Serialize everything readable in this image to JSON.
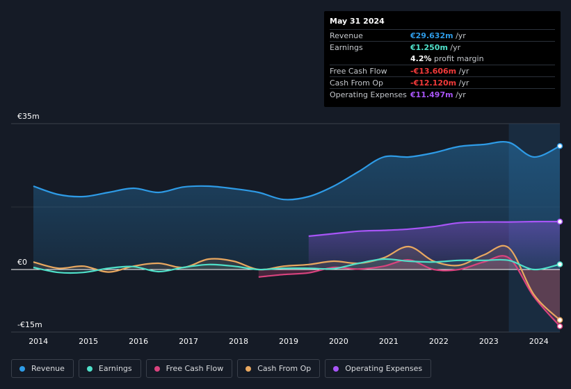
{
  "tooltip": {
    "date": "May 31 2024",
    "rows": [
      {
        "label": "Revenue",
        "value": "€29.632m",
        "unit": " /yr",
        "color": "#2e9be6"
      },
      {
        "label": "Earnings",
        "value": "€1.250m",
        "unit": " /yr",
        "color": "#4fe0c9"
      },
      {
        "label": "",
        "value": "4.2%",
        "unit": " profit margin",
        "color": "#ffffff"
      },
      {
        "label": "Free Cash Flow",
        "value": "-€13.606m",
        "unit": " /yr",
        "color": "#f23a3a"
      },
      {
        "label": "Cash From Op",
        "value": "-€12.120m",
        "unit": " /yr",
        "color": "#f23a3a"
      },
      {
        "label": "Operating Expenses",
        "value": "€11.497m",
        "unit": " /yr",
        "color": "#a855f7"
      }
    ]
  },
  "legend": [
    {
      "label": "Revenue",
      "color": "#2e9be6"
    },
    {
      "label": "Earnings",
      "color": "#4fe0c9"
    },
    {
      "label": "Free Cash Flow",
      "color": "#d9437e"
    },
    {
      "label": "Cash From Op",
      "color": "#e9a860"
    },
    {
      "label": "Operating Expenses",
      "color": "#a855f7"
    }
  ],
  "chart_data": {
    "type": "area",
    "y_tick_labels": [
      "€35m",
      "€0",
      "-€15m"
    ],
    "x_tick_labels": [
      "2014",
      "2015",
      "2016",
      "2017",
      "2018",
      "2019",
      "2020",
      "2021",
      "2022",
      "2023",
      "2024"
    ],
    "ylim": [
      -15,
      35
    ],
    "xlim": [
      2013.9,
      2024.42
    ],
    "grid": true,
    "highlight_start": 2023.4,
    "series": [
      {
        "name": "Revenue",
        "color": "#2e9be6",
        "x": [
          2013.9,
          2014.4,
          2014.9,
          2015.4,
          2015.9,
          2016.4,
          2016.9,
          2017.4,
          2017.9,
          2018.4,
          2018.9,
          2019.4,
          2019.9,
          2020.4,
          2020.9,
          2021.4,
          2021.9,
          2022.4,
          2022.9,
          2023.4,
          2023.9,
          2024.42
        ],
        "y": [
          20,
          18,
          17.5,
          18.5,
          19.5,
          18.5,
          19.8,
          20,
          19.4,
          18.5,
          16.8,
          17.5,
          20,
          23.5,
          27,
          27,
          28,
          29.5,
          30,
          30.5,
          27,
          29.632
        ]
      },
      {
        "name": "Earnings",
        "color": "#4fe0c9",
        "x": [
          2013.9,
          2014.4,
          2014.9,
          2015.4,
          2015.9,
          2016.4,
          2016.9,
          2017.4,
          2017.9,
          2018.4,
          2018.9,
          2019.4,
          2019.9,
          2020.4,
          2020.9,
          2021.4,
          2021.9,
          2022.4,
          2022.9,
          2023.4,
          2023.9,
          2024.42
        ],
        "y": [
          0.5,
          -0.7,
          -0.7,
          0.3,
          0.7,
          -0.5,
          0.5,
          1.2,
          0.8,
          0,
          0.3,
          0.3,
          0.2,
          1.5,
          2.5,
          2,
          1.8,
          2.2,
          2.2,
          2.2,
          0,
          1.25
        ]
      },
      {
        "name": "Free Cash Flow",
        "color": "#d9437e",
        "x": [
          2018.4,
          2018.9,
          2019.4,
          2019.9,
          2020.4,
          2020.9,
          2021.4,
          2021.9,
          2022.4,
          2022.9,
          2023.4,
          2023.9,
          2024.42
        ],
        "y": [
          -1.8,
          -1.2,
          -0.8,
          0.5,
          0.1,
          0.8,
          2.3,
          0,
          0,
          1.8,
          2.8,
          -6.5,
          -13.606
        ]
      },
      {
        "name": "Cash From Op",
        "color": "#e9a860",
        "x": [
          2013.9,
          2014.4,
          2014.9,
          2015.4,
          2015.9,
          2016.4,
          2016.9,
          2017.4,
          2017.9,
          2018.4,
          2018.9,
          2019.4,
          2019.9,
          2020.4,
          2020.9,
          2021.4,
          2021.9,
          2022.4,
          2022.9,
          2023.4,
          2023.9,
          2024.42
        ],
        "y": [
          1.8,
          0.3,
          0.8,
          -0.6,
          0.8,
          1.5,
          0.5,
          2.5,
          2,
          0,
          0.8,
          1.2,
          2,
          1.5,
          2.8,
          5.5,
          2,
          1,
          3.5,
          5.2,
          -6,
          -12.12
        ]
      },
      {
        "name": "Operating Expenses",
        "color": "#a855f7",
        "x": [
          2019.4,
          2019.9,
          2020.4,
          2020.9,
          2021.4,
          2021.9,
          2022.4,
          2022.9,
          2023.4,
          2023.9,
          2024.42
        ],
        "y": [
          8,
          8.6,
          9.2,
          9.4,
          9.7,
          10.3,
          11.2,
          11.4,
          11.4,
          11.5,
          11.497
        ]
      }
    ]
  }
}
